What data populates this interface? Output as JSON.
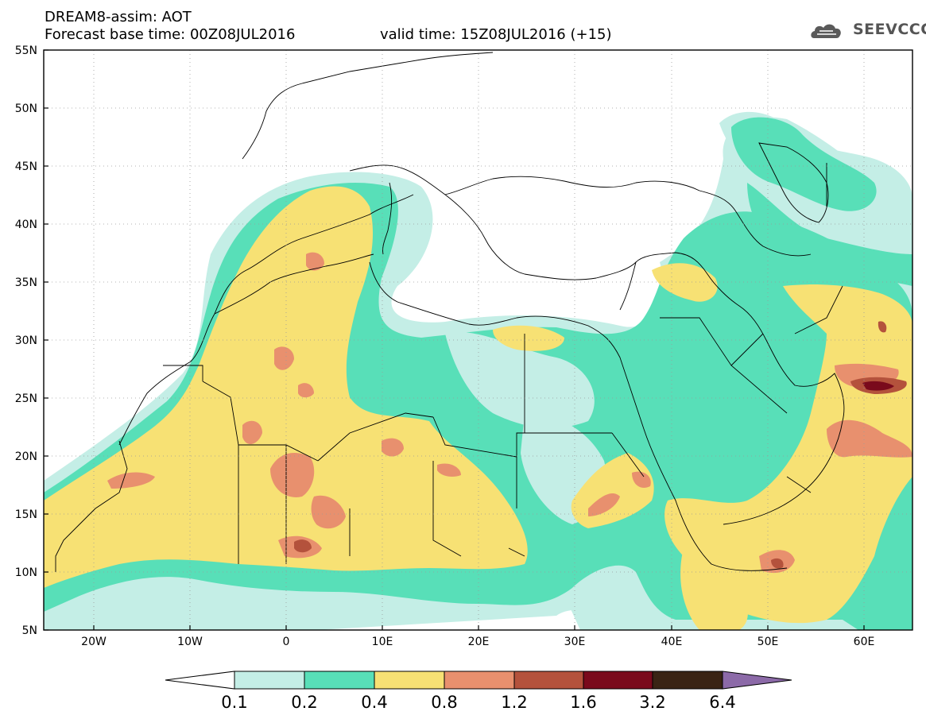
{
  "header": {
    "title": "DREAM8-assim: AOT",
    "base_time": "Forecast base time: 00Z08JUL2016",
    "valid_time": "valid time: 15Z08JUL2016 (+15)"
  },
  "logo": {
    "text": "SEEVCCC",
    "icon": "cloud-icon"
  },
  "map": {
    "projection": "lat-lon",
    "lon_range": [
      -25,
      65
    ],
    "lat_range": [
      5,
      55
    ],
    "lat_ticks": [
      "55N",
      "50N",
      "45N",
      "40N",
      "35N",
      "30N",
      "25N",
      "20N",
      "15N",
      "10N",
      "5N"
    ],
    "lon_ticks": [
      "20W",
      "10W",
      "0",
      "10E",
      "20E",
      "30E",
      "40E",
      "50E",
      "60E"
    ],
    "lon_tick_values": [
      -20,
      -10,
      0,
      10,
      20,
      30,
      40,
      50,
      60
    ],
    "lat_tick_values": [
      55,
      50,
      45,
      40,
      35,
      30,
      25,
      20,
      15,
      10,
      5
    ],
    "grid": "dotted"
  },
  "colorbar": {
    "labels": [
      "0.1",
      "0.2",
      "0.4",
      "0.8",
      "1.2",
      "1.6",
      "3.2",
      "6.4"
    ],
    "colors": [
      "#ffffff",
      "#c4eee6",
      "#58dfb8",
      "#f7e174",
      "#e8906e",
      "#b4523c",
      "#7a0a1c",
      "#3a2414",
      "#8c6aa8"
    ]
  }
}
